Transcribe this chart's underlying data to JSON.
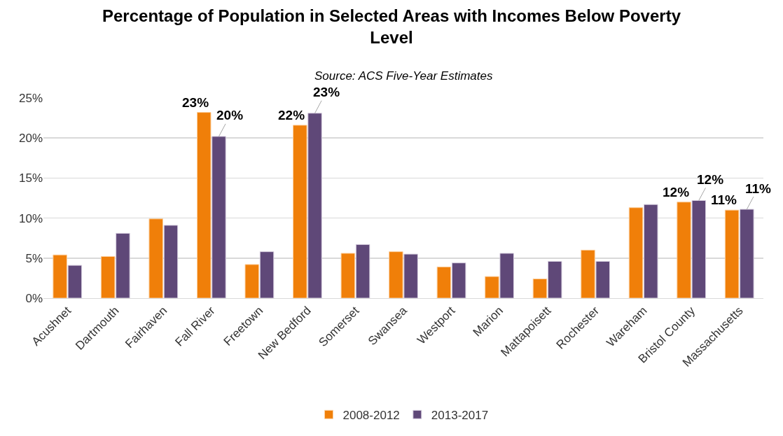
{
  "chart_data": {
    "type": "bar",
    "title": "Percentage of Population in Selected Areas with Incomes Below Poverty Level",
    "subtitle": "Source: ACS Five-Year Estimates",
    "categories": [
      "Acushnet",
      "Dartmouth",
      "Fairhaven",
      "Fall River",
      "Freetown",
      "New Bedford",
      "Somerset",
      "Swansea",
      "Westport",
      "Marion",
      "Mattapoisett",
      "Rochester",
      "Wareham",
      "Bristol County",
      "Massachusetts"
    ],
    "series": [
      {
        "name": "2008-2012",
        "color": "#f07f09",
        "values": [
          5.4,
          5.2,
          9.9,
          23.2,
          4.2,
          21.6,
          5.6,
          5.8,
          3.9,
          2.7,
          2.4,
          6.0,
          11.3,
          12.0,
          11.0
        ],
        "value_labels": [
          null,
          null,
          null,
          "23%",
          null,
          "22%",
          null,
          null,
          null,
          null,
          null,
          null,
          null,
          "12%",
          "11%"
        ]
      },
      {
        "name": "2013-2017",
        "color": "#5f4878",
        "values": [
          4.1,
          8.1,
          9.1,
          20.2,
          5.8,
          23.1,
          6.7,
          5.5,
          4.4,
          5.6,
          4.6,
          4.6,
          11.7,
          12.2,
          11.1
        ],
        "value_labels": [
          null,
          null,
          null,
          "20%",
          null,
          "23%",
          null,
          null,
          null,
          null,
          null,
          null,
          null,
          "12%",
          "11%"
        ]
      }
    ],
    "ylim": [
      0,
      25
    ],
    "yticks": [
      {
        "value": 0,
        "label": "0%"
      },
      {
        "value": 5,
        "label": "5%"
      },
      {
        "value": 10,
        "label": "10%"
      },
      {
        "value": 15,
        "label": "15%"
      },
      {
        "value": 20,
        "label": "20%"
      },
      {
        "value": 25,
        "label": "25%"
      }
    ],
    "grid": "y",
    "legend": "bottom"
  }
}
